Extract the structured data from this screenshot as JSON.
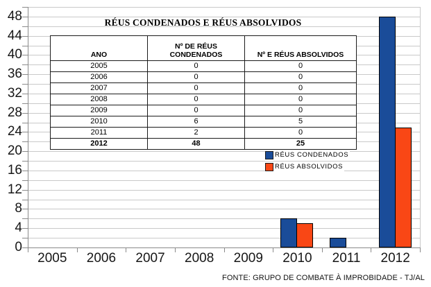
{
  "chart_data": {
    "type": "bar",
    "title": "RÉUS CONDENADOS E RÉUS ABSOLVIDOS",
    "categories": [
      "2005",
      "2006",
      "2007",
      "2008",
      "2009",
      "2010",
      "2011",
      "2012"
    ],
    "series": [
      {
        "name": "RÉUS CONDENADOS",
        "color": "#1A4C99",
        "values": [
          0,
          0,
          0,
          0,
          0,
          6,
          2,
          48
        ]
      },
      {
        "name": "RÉUS ABSOLVIDOS",
        "color": "#F94715",
        "values": [
          0,
          0,
          0,
          0,
          0,
          5,
          0,
          25
        ]
      }
    ],
    "xlabel": "",
    "ylabel": "",
    "ylim": [
      0,
      50
    ],
    "y_ticks": [
      0,
      4,
      8,
      12,
      16,
      20,
      24,
      28,
      32,
      36,
      40,
      44,
      48
    ],
    "y_minor_step": 2,
    "grid": true,
    "legend_position": "middle-right"
  },
  "table": {
    "headers": [
      "ANO",
      "Nº DE RÉUS\nCONDENADOS",
      "Nº E RÉUS ABSOLVIDOS"
    ],
    "rows": [
      {
        "ano": "2005",
        "condenados": "0",
        "absolvidos": "0"
      },
      {
        "ano": "2006",
        "condenados": "0",
        "absolvidos": "0"
      },
      {
        "ano": "2007",
        "condenados": "0",
        "absolvidos": "0"
      },
      {
        "ano": "2008",
        "condenados": "0",
        "absolvidos": "0"
      },
      {
        "ano": "2009",
        "condenados": "0",
        "absolvidos": "0"
      },
      {
        "ano": "2010",
        "condenados": "6",
        "absolvidos": "5"
      },
      {
        "ano": "2011",
        "condenados": "2",
        "absolvidos": "0"
      },
      {
        "ano": "2012",
        "condenados": "48",
        "absolvidos": "25"
      }
    ]
  },
  "legend": {
    "items": [
      {
        "label": "RÉUS CONDENADOS",
        "color": "#1A4C99"
      },
      {
        "label": "RÉUS ABSOLVIDOS",
        "color": "#F94715"
      }
    ]
  },
  "footer": {
    "source": "FONTE: GRUPO DE COMBATE À IMPROBIDADE - TJ/AL"
  },
  "colors": {
    "grid": "#c9c9c9",
    "axis": "#8a8a8a",
    "bar_border": "#000000",
    "background": "#ffffff"
  }
}
